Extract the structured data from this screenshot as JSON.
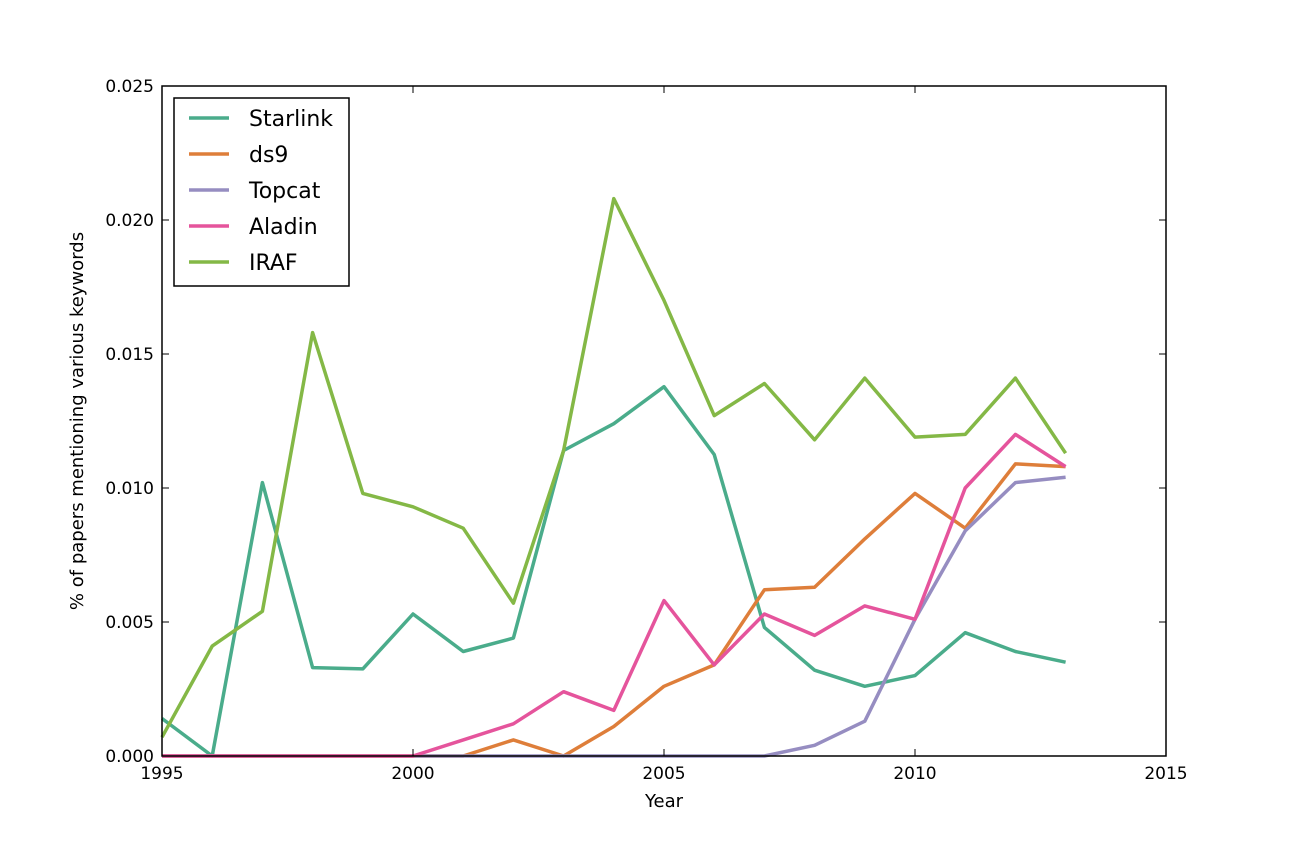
{
  "chart_data": {
    "type": "line",
    "title": "",
    "xlabel": "Year",
    "ylabel": "% of papers mentioning various keywords",
    "xlim": [
      1995,
      2015
    ],
    "ylim": [
      0.0,
      0.025
    ],
    "x_ticks": [
      "1995",
      "2000",
      "2005",
      "2010",
      "2015"
    ],
    "y_ticks": [
      "0.000",
      "0.005",
      "0.010",
      "0.015",
      "0.020",
      "0.025"
    ],
    "legend_position": "top-left",
    "grid": false,
    "x": [
      1995,
      1996,
      1997,
      1998,
      1999,
      2000,
      2001,
      2002,
      2003,
      2004,
      2005,
      2006,
      2007,
      2008,
      2009,
      2010,
      2011,
      2012,
      2013
    ],
    "series": [
      {
        "name": "Starlink",
        "color": "#4aac8b",
        "values": [
          0.0014,
          0.0,
          0.0102,
          0.0033,
          0.00325,
          0.0053,
          0.0039,
          0.0044,
          0.0114,
          0.0124,
          0.01378,
          0.01125,
          0.0048,
          0.0032,
          0.0026,
          0.003,
          0.0046,
          0.0039,
          0.0035
        ]
      },
      {
        "name": "ds9",
        "color": "#de7e3a",
        "values": [
          0.0,
          0.0,
          0.0,
          0.0,
          0.0,
          0.0,
          0.0,
          0.0006,
          0.0,
          0.0011,
          0.0026,
          0.0034,
          0.0062,
          0.0063,
          0.0081,
          0.0098,
          0.0085,
          0.0109,
          0.0108
        ]
      },
      {
        "name": "Topcat",
        "color": "#968dc1",
        "values": [
          0.0,
          0.0,
          0.0,
          0.0,
          0.0,
          0.0,
          0.0,
          0.0,
          0.0,
          0.0,
          0.0,
          0.0,
          0.0,
          0.0004,
          0.0013,
          0.0051,
          0.0084,
          0.0102,
          0.0104
        ]
      },
      {
        "name": "Aladin",
        "color": "#e5549c",
        "values": [
          0.0,
          0.0,
          0.0,
          0.0,
          0.0,
          0.0,
          0.0006,
          0.0012,
          0.0024,
          0.0017,
          0.0058,
          0.0034,
          0.0053,
          0.0045,
          0.0056,
          0.0051,
          0.01,
          0.012,
          0.0108
        ]
      },
      {
        "name": "IRAF",
        "color": "#84b846",
        "values": [
          0.0007,
          0.0041,
          0.0054,
          0.0158,
          0.0098,
          0.0093,
          0.0085,
          0.0057,
          0.0114,
          0.0208,
          0.017,
          0.0127,
          0.0139,
          0.0118,
          0.0141,
          0.0119,
          0.012,
          0.0141,
          0.0113
        ]
      }
    ]
  }
}
